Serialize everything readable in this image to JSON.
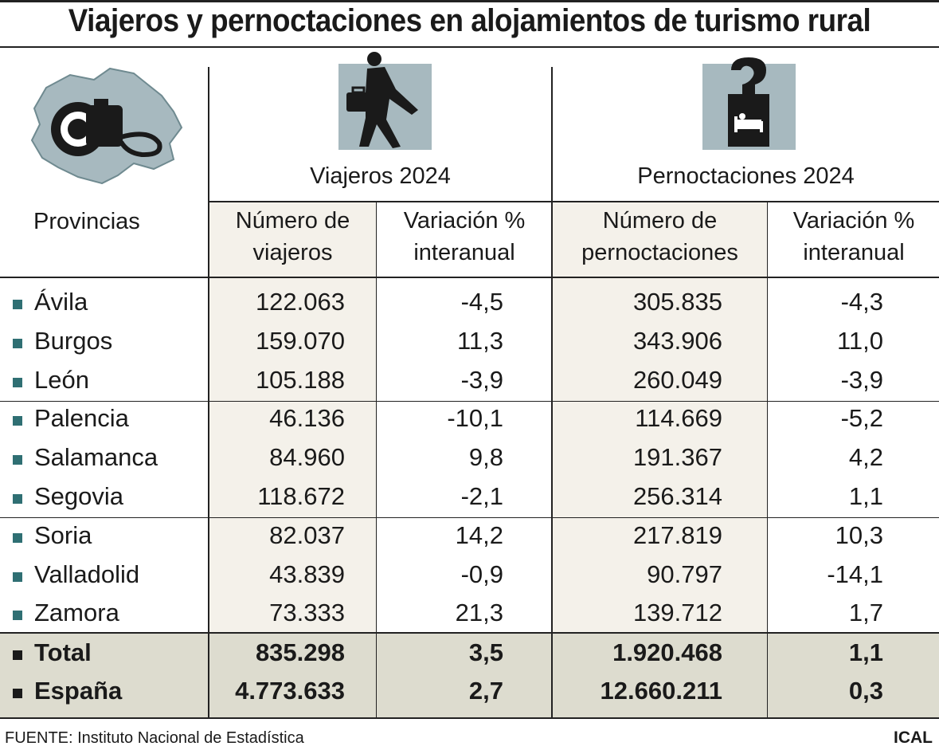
{
  "title": "Viajeros y pernoctaciones en alojamientos de turismo rural",
  "groups": {
    "viajeros": "Viajeros 2024",
    "pernoctaciones": "Pernoctaciones 2024"
  },
  "columns": {
    "provincias": "Provincias",
    "num_viajeros": [
      "Número de",
      "viajeros"
    ],
    "var_viajeros": [
      "Variación %",
      "interanual"
    ],
    "num_pernoct": [
      "Número de",
      "pernoctaciones"
    ],
    "var_pernoct": [
      "Variación %",
      "interanual"
    ]
  },
  "chart_data": {
    "type": "table",
    "title": "Viajeros y pernoctaciones en alojamientos de turismo rural",
    "columns": [
      "Provincias",
      "Número de viajeros",
      "Variación % interanual",
      "Número de pernoctaciones",
      "Variación % interanual"
    ],
    "rows": [
      [
        "Ávila",
        "122.063",
        "-4,5",
        "305.835",
        "-4,3"
      ],
      [
        "Burgos",
        "159.070",
        "11,3",
        "343.906",
        "11,0"
      ],
      [
        "León",
        "105.188",
        "-3,9",
        "260.049",
        "-3,9"
      ],
      [
        "Palencia",
        "46.136",
        "-10,1",
        "114.669",
        "-5,2"
      ],
      [
        "Salamanca",
        "84.960",
        "9,8",
        "191.367",
        "4,2"
      ],
      [
        "Segovia",
        "118.672",
        "-2,1",
        "256.314",
        "1,1"
      ],
      [
        "Soria",
        "82.037",
        "14,2",
        "217.819",
        "10,3"
      ],
      [
        "Valladolid",
        "43.839",
        "-0,9",
        "90.797",
        "-14,1"
      ],
      [
        "Zamora",
        "73.333",
        "21,3",
        "139.712",
        "1,7"
      ]
    ],
    "totals": [
      [
        "Total",
        "835.298",
        "3,5",
        "1.920.468",
        "1,1"
      ],
      [
        "España",
        "4.773.633",
        "2,7",
        "12.660.211",
        "0,3"
      ]
    ]
  },
  "footer": {
    "source": "FUENTE: Instituto Nacional de Estadística",
    "brand": "ICAL"
  },
  "colors": {
    "bullet": "#2f6f73",
    "icon_bg": "#a7b9bf",
    "shade": "#f4f1ea",
    "total_bg": "#dddccf"
  },
  "icons": {
    "map": "castilla-leon-map-camera-icon",
    "viajeros": "traveler-with-suitcase-icon",
    "pernoctaciones": "hotel-door-hanger-icon"
  }
}
